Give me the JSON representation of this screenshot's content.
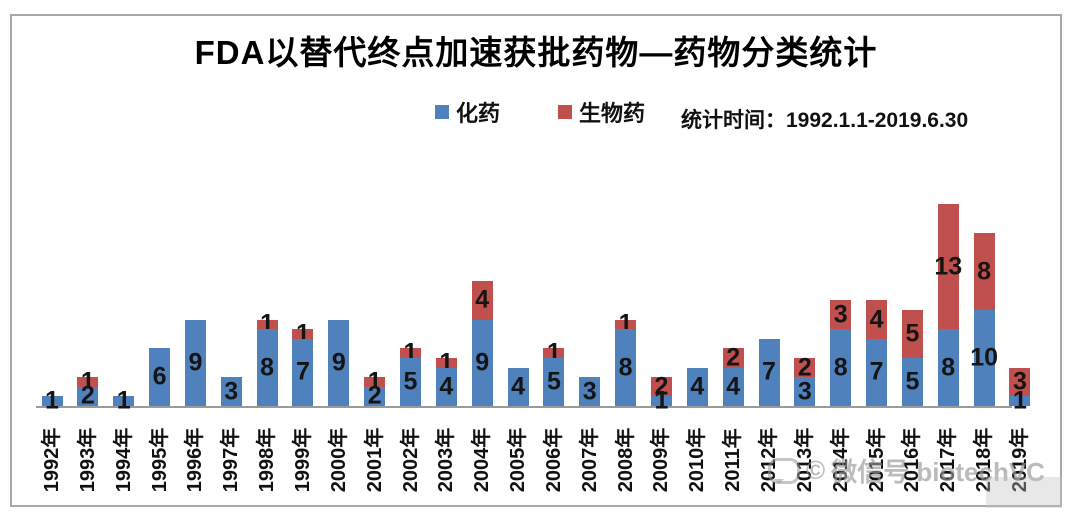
{
  "title": "FDA以替代终点加速获批药物—药物分类统计",
  "stat_time": "统计时间：1992.1.1-2019.6.30",
  "watermark": {
    "copyright": "©",
    "text": "微信号 biotechVC"
  },
  "colors": {
    "chem_blue": "#4f81bd",
    "bio_red": "#c0504d",
    "axis_gray": "#9a9a9a",
    "frame_gray": "#a8a8a8"
  },
  "chart_data": {
    "type": "bar",
    "stacked": true,
    "title": "FDA以替代终点加速获批药物—药物分类统计",
    "xlabel": "",
    "ylabel": "",
    "grid": false,
    "legend_position": "top-center",
    "value_labels": "shown on each segment",
    "categories": [
      "1992年",
      "1993年",
      "1994年",
      "1995年",
      "1996年",
      "1997年",
      "1998年",
      "1999年",
      "2000年",
      "2001年",
      "2002年",
      "2003年",
      "2004年",
      "2005年",
      "2006年",
      "2007年",
      "2008年",
      "2009年",
      "2010年",
      "2011年",
      "2012年",
      "2013年",
      "2014年",
      "2015年",
      "2016年",
      "2017年",
      "2018年",
      "2019年"
    ],
    "series": [
      {
        "name": "化药",
        "color": "#4f81bd",
        "values": [
          1,
          2,
          1,
          6,
          9,
          3,
          8,
          7,
          9,
          2,
          5,
          4,
          9,
          4,
          5,
          3,
          8,
          1,
          4,
          4,
          7,
          3,
          8,
          7,
          5,
          8,
          10,
          1
        ]
      },
      {
        "name": "生物药",
        "color": "#c0504d",
        "values": [
          0,
          1,
          0,
          0,
          0,
          0,
          1,
          1,
          0,
          1,
          1,
          1,
          4,
          0,
          1,
          0,
          1,
          2,
          0,
          2,
          0,
          2,
          3,
          4,
          5,
          13,
          8,
          3
        ]
      }
    ],
    "ylim": [
      0,
      21
    ]
  }
}
